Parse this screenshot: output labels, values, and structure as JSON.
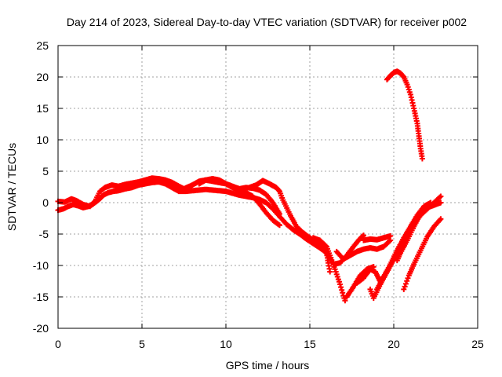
{
  "chart_data": {
    "type": "scatter",
    "title": "Day 214 of 2023, Sidereal Day-to-day VTEC variation (SDTVAR) for receiver p002",
    "xlabel": "GPS time / hours",
    "ylabel": "SDTVAR / TECUs",
    "xlim": [
      0,
      25
    ],
    "ylim": [
      -20,
      25
    ],
    "xticks": [
      0,
      5,
      10,
      15,
      20,
      25
    ],
    "yticks": [
      -20,
      -15,
      -10,
      -5,
      0,
      5,
      10,
      15,
      20,
      25
    ],
    "xtick_labels": [
      "0",
      "5",
      "10",
      "15",
      "20",
      "25"
    ],
    "ytick_labels": [
      "-20",
      "-15",
      "-10",
      "-5",
      "0",
      "5",
      "10",
      "15",
      "20",
      "25"
    ],
    "grid": true,
    "marker": "plus",
    "color": "#ff0000",
    "series": [
      {
        "points": [
          [
            0.0,
            -1.2
          ],
          [
            0.3,
            -1.0
          ],
          [
            0.6,
            -0.6
          ],
          [
            0.9,
            -0.3
          ],
          [
            1.2,
            -0.5
          ],
          [
            1.5,
            -0.8
          ],
          [
            1.8,
            -0.6
          ],
          [
            2.1,
            -0.2
          ],
          [
            2.4,
            0.4
          ],
          [
            2.7,
            1.2
          ],
          [
            3.0,
            1.6
          ],
          [
            3.3,
            1.8
          ],
          [
            3.6,
            1.9
          ],
          [
            4.0,
            2.2
          ],
          [
            4.4,
            2.4
          ],
          [
            4.8,
            2.8
          ],
          [
            5.2,
            3.0
          ],
          [
            5.6,
            3.2
          ],
          [
            6.0,
            3.3
          ],
          [
            6.4,
            3.0
          ],
          [
            6.8,
            2.4
          ],
          [
            7.2,
            1.8
          ],
          [
            7.6,
            1.8
          ],
          [
            8.0,
            1.9
          ],
          [
            8.4,
            2.0
          ],
          [
            8.8,
            2.1
          ],
          [
            9.2,
            2.0
          ],
          [
            9.6,
            1.9
          ],
          [
            10.0,
            1.8
          ],
          [
            10.4,
            1.5
          ],
          [
            10.8,
            1.2
          ],
          [
            11.2,
            1.0
          ],
          [
            11.6,
            0.8
          ],
          [
            12.0,
            0.5
          ],
          [
            12.4,
            0.0
          ],
          [
            12.8,
            -1.0
          ],
          [
            13.2,
            -2.2
          ],
          [
            13.6,
            -3.4
          ],
          [
            14.0,
            -4.3
          ],
          [
            14.4,
            -5.0
          ],
          [
            14.8,
            -5.8
          ],
          [
            15.2,
            -6.5
          ],
          [
            15.6,
            -7.2
          ],
          [
            16.0,
            -8.0
          ]
        ]
      },
      {
        "points": [
          [
            0.0,
            0.2
          ],
          [
            0.4,
            0.1
          ],
          [
            0.8,
            0.6
          ],
          [
            1.1,
            0.3
          ],
          [
            1.5,
            -0.3
          ],
          [
            1.9,
            -0.6
          ],
          [
            2.2,
            0.2
          ],
          [
            2.5,
            1.8
          ],
          [
            2.8,
            2.4
          ],
          [
            3.2,
            2.8
          ],
          [
            3.6,
            2.6
          ],
          [
            4.0,
            2.9
          ],
          [
            4.4,
            3.1
          ],
          [
            4.8,
            3.3
          ],
          [
            5.2,
            3.6
          ],
          [
            5.6,
            3.9
          ],
          [
            6.0,
            3.8
          ],
          [
            6.4,
            3.6
          ],
          [
            6.8,
            3.2
          ],
          [
            7.2,
            2.6
          ],
          [
            7.5,
            2.2
          ],
          [
            8.0,
            2.8
          ],
          [
            8.4,
            3.4
          ],
          [
            8.8,
            3.6
          ],
          [
            9.2,
            3.4
          ],
          [
            9.6,
            3.2
          ],
          [
            10.0,
            3.0
          ],
          [
            10.4,
            2.6
          ],
          [
            10.8,
            2.2
          ],
          [
            11.2,
            2.4
          ],
          [
            11.6,
            2.3
          ],
          [
            12.0,
            2.0
          ],
          [
            12.4,
            1.3
          ],
          [
            12.8,
            0.0
          ],
          [
            13.2,
            -1.8
          ]
        ]
      },
      {
        "points": [
          [
            8.4,
            3.0
          ],
          [
            8.8,
            3.6
          ],
          [
            9.2,
            3.8
          ],
          [
            9.6,
            3.6
          ],
          [
            10.0,
            3.0
          ],
          [
            10.4,
            2.4
          ],
          [
            10.8,
            2.0
          ],
          [
            11.2,
            1.6
          ],
          [
            11.6,
            1.0
          ],
          [
            12.0,
            -0.2
          ],
          [
            12.4,
            -1.6
          ],
          [
            12.8,
            -2.8
          ],
          [
            13.2,
            -3.6
          ]
        ]
      },
      {
        "points": [
          [
            11.4,
            2.4
          ],
          [
            11.8,
            2.8
          ],
          [
            12.2,
            3.5
          ],
          [
            12.6,
            3.0
          ],
          [
            13.0,
            2.4
          ],
          [
            13.2,
            1.8
          ],
          [
            13.4,
            0.4
          ],
          [
            13.8,
            -1.8
          ],
          [
            14.2,
            -3.8
          ],
          [
            14.6,
            -4.8
          ],
          [
            15.0,
            -5.6
          ],
          [
            15.4,
            -6.2
          ],
          [
            15.8,
            -7.0
          ],
          [
            16.0,
            -8.0
          ],
          [
            16.1,
            -9.6
          ],
          [
            16.2,
            -11.0
          ]
        ]
      },
      {
        "points": [
          [
            15.2,
            -5.6
          ],
          [
            15.6,
            -6.0
          ],
          [
            16.0,
            -7.0
          ],
          [
            16.2,
            -8.4
          ],
          [
            16.5,
            -10.6
          ],
          [
            16.8,
            -13.0
          ],
          [
            17.0,
            -14.8
          ],
          [
            17.1,
            -15.6
          ]
        ]
      },
      {
        "points": [
          [
            16.0,
            -8.0
          ],
          [
            16.4,
            -9.8
          ],
          [
            16.8,
            -9.6
          ],
          [
            17.2,
            -8.4
          ],
          [
            17.6,
            -7.0
          ],
          [
            17.9,
            -6.0
          ],
          [
            18.2,
            -5.2
          ]
        ]
      },
      {
        "points": [
          [
            16.6,
            -7.8
          ],
          [
            17.0,
            -9.0
          ],
          [
            17.4,
            -8.4
          ],
          [
            17.8,
            -7.8
          ],
          [
            18.2,
            -7.4
          ],
          [
            18.6,
            -7.2
          ],
          [
            19.0,
            -7.4
          ],
          [
            19.4,
            -7.0
          ],
          [
            19.8,
            -6.0
          ]
        ]
      },
      {
        "points": [
          [
            17.2,
            -15.0
          ],
          [
            17.6,
            -13.4
          ],
          [
            18.0,
            -11.6
          ],
          [
            18.4,
            -10.6
          ],
          [
            18.8,
            -10.2
          ]
        ]
      },
      {
        "points": [
          [
            18.2,
            -6.0
          ],
          [
            18.6,
            -5.8
          ],
          [
            19.0,
            -5.9
          ],
          [
            19.4,
            -5.6
          ],
          [
            19.8,
            -5.3
          ]
        ]
      },
      {
        "points": [
          [
            17.8,
            -12.8
          ],
          [
            18.2,
            -12.0
          ],
          [
            18.6,
            -10.6
          ],
          [
            18.9,
            -11.0
          ],
          [
            19.2,
            -12.6
          ],
          [
            19.6,
            -11.0
          ],
          [
            20.0,
            -9.0
          ],
          [
            20.4,
            -7.0
          ],
          [
            20.8,
            -5.0
          ],
          [
            21.2,
            -3.2
          ],
          [
            21.6,
            -1.6
          ],
          [
            22.0,
            -0.8
          ],
          [
            22.4,
            -0.4
          ],
          [
            22.8,
            0.0
          ]
        ]
      },
      {
        "points": [
          [
            18.6,
            -13.8
          ],
          [
            18.8,
            -15.2
          ],
          [
            19.2,
            -13.0
          ],
          [
            19.6,
            -11.0
          ],
          [
            20.0,
            -9.0
          ],
          [
            20.4,
            -7.0
          ],
          [
            20.8,
            -5.2
          ],
          [
            21.2,
            -3.4
          ],
          [
            21.6,
            -2.0
          ],
          [
            22.0,
            -1.0
          ],
          [
            22.4,
            0.0
          ],
          [
            22.8,
            1.0
          ]
        ]
      },
      {
        "points": [
          [
            19.0,
            -13.8
          ],
          [
            19.4,
            -11.8
          ],
          [
            19.8,
            -9.8
          ],
          [
            20.2,
            -7.6
          ],
          [
            20.6,
            -5.6
          ],
          [
            21.0,
            -3.8
          ],
          [
            21.4,
            -2.0
          ],
          [
            21.8,
            -0.6
          ],
          [
            22.2,
            0.0
          ]
        ]
      },
      {
        "points": [
          [
            20.2,
            -9.2
          ],
          [
            20.4,
            -8.0
          ],
          [
            20.8,
            -6.0
          ],
          [
            21.2,
            -3.8
          ],
          [
            21.6,
            -1.8
          ],
          [
            22.0,
            -0.4
          ]
        ]
      },
      {
        "points": [
          [
            20.6,
            -13.8
          ],
          [
            20.9,
            -11.6
          ],
          [
            21.2,
            -9.8
          ],
          [
            21.6,
            -7.6
          ],
          [
            22.0,
            -5.4
          ],
          [
            22.4,
            -3.8
          ],
          [
            22.8,
            -2.6
          ]
        ]
      },
      {
        "points": [
          [
            19.6,
            19.6
          ],
          [
            19.8,
            20.2
          ],
          [
            20.0,
            20.7
          ],
          [
            20.2,
            20.9
          ],
          [
            20.4,
            20.6
          ],
          [
            20.6,
            20.0
          ],
          [
            20.8,
            18.8
          ],
          [
            21.0,
            17.2
          ],
          [
            21.2,
            15.0
          ],
          [
            21.4,
            12.6
          ],
          [
            21.5,
            10.6
          ],
          [
            21.6,
            8.6
          ],
          [
            21.7,
            7.0
          ]
        ]
      }
    ]
  }
}
